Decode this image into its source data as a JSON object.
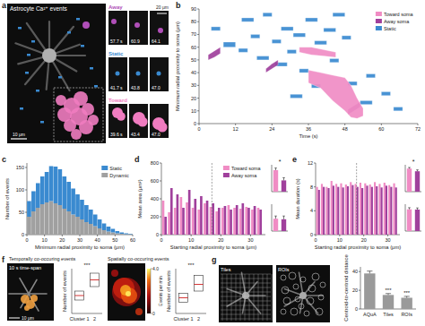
{
  "panel_labels": [
    "a",
    "b",
    "c",
    "d",
    "e",
    "f",
    "g"
  ],
  "images": {
    "a": {
      "title": "Astrocyte Ca²⁺ events",
      "scale_bar": "10 μm",
      "inset_scale_bar": "20 μm",
      "rows": [
        {
          "label": "Away",
          "color": "#b04fb8",
          "times": [
            "57.7 s",
            "60.9",
            "64.1"
          ]
        },
        {
          "label": "Static",
          "color": "#3a8ad0",
          "times": [
            "41.7 s",
            "43.8",
            "47.0"
          ]
        },
        {
          "label": "Toward",
          "color": "#f07cc0",
          "times": [
            "39.6 s",
            "43.4",
            "47.0"
          ]
        }
      ]
    },
    "f": {
      "left_title": "Temporally co-occuring events",
      "left_label": "10 s time-span",
      "scale_bar": "10 μm",
      "right_title": "Spatially co-occuring events",
      "colorbar_title": "Events per min",
      "colorbar_range": [
        0,
        4
      ],
      "colorbar_ticks": [
        0,
        {
          "value": 4,
          "label": "4.0"
        }
      ]
    },
    "g": {
      "labels": [
        "Tiles",
        "ROIs"
      ]
    }
  },
  "chart_data": [
    {
      "type": "range_area",
      "xlabel": "Time (s)",
      "ylabel": "Minimum radial proximity to soma (μm)",
      "xlim": [
        0,
        72
      ],
      "xticks": [
        0,
        12,
        24,
        36,
        48,
        60,
        72
      ],
      "ylim": [
        0,
        90
      ],
      "yticks": [
        0,
        10,
        20,
        30,
        40,
        50,
        60,
        70,
        80,
        90
      ],
      "legend": "upper right",
      "series": [
        {
          "name": "Toward soma",
          "color": "#f08cc4",
          "events": [
            {
              "x": [
                36,
                40,
                44,
                48,
                50,
                52,
                54
              ],
              "low": [
                32,
                28,
                18,
                10,
                5,
                4,
                6
              ],
              "high": [
                42,
                40,
                38,
                36,
                30,
                20,
                12
              ]
            },
            {
              "x": [
                33,
                37,
                41,
                45
              ],
              "low": [
                56,
                54,
                53,
                52
              ],
              "high": [
                60,
                60,
                58,
                56
              ]
            }
          ]
        },
        {
          "name": "Away soma",
          "color": "#a0409c",
          "events": [
            {
              "x": [
                3,
                5,
                7
              ],
              "low": [
                50,
                52,
                55
              ],
              "high": [
                54,
                57,
                60
              ]
            },
            {
              "x": [
                22,
                24,
                26
              ],
              "low": [
                40,
                43,
                46
              ],
              "high": [
                43,
                47,
                50
              ]
            },
            {
              "x": [
                49,
                51,
                53
              ],
              "low": [
                7,
                10,
                13
              ],
              "high": [
                11,
                14,
                17
              ]
            }
          ]
        },
        {
          "name": "Static",
          "color": "#3a8ad0",
          "events": [
            {
              "x": [
                4,
                7
              ],
              "low": [
                73,
                73
              ],
              "high": [
                76,
                76
              ]
            },
            {
              "x": [
                8,
                12
              ],
              "low": [
                60,
                60
              ],
              "high": [
                64,
                64
              ]
            },
            {
              "x": [
                13,
                16
              ],
              "low": [
                56,
                56
              ],
              "high": [
                59,
                59
              ]
            },
            {
              "x": [
                14,
                18
              ],
              "low": [
                80,
                80
              ],
              "high": [
                83,
                83
              ]
            },
            {
              "x": [
                17,
                20
              ],
              "low": [
                67,
                67
              ],
              "high": [
                70,
                70
              ]
            },
            {
              "x": [
                19,
                23
              ],
              "low": [
                50,
                50
              ],
              "high": [
                53,
                53
              ]
            },
            {
              "x": [
                21,
                24
              ],
              "low": [
                84,
                84
              ],
              "high": [
                87,
                87
              ]
            },
            {
              "x": [
                24,
                27
              ],
              "low": [
                63,
                63
              ],
              "high": [
                66,
                66
              ]
            },
            {
              "x": [
                25,
                29
              ],
              "low": [
                45,
                45
              ],
              "high": [
                48,
                48
              ]
            },
            {
              "x": [
                27,
                31
              ],
              "low": [
                73,
                73
              ],
              "high": [
                76,
                76
              ]
            },
            {
              "x": [
                29,
                32
              ],
              "low": [
                55,
                55
              ],
              "high": [
                58,
                58
              ]
            },
            {
              "x": [
                30,
                34
              ],
              "low": [
                20,
                20
              ],
              "high": [
                23,
                23
              ]
            },
            {
              "x": [
                31,
                35
              ],
              "low": [
                68,
                68
              ],
              "high": [
                71,
                71
              ]
            },
            {
              "x": [
                33,
                36
              ],
              "low": [
                40,
                40
              ],
              "high": [
                43,
                43
              ]
            },
            {
              "x": [
                35,
                39
              ],
              "low": [
                80,
                80
              ],
              "high": [
                83,
                83
              ]
            },
            {
              "x": [
                37,
                40
              ],
              "low": [
                28,
                28
              ],
              "high": [
                31,
                31
              ]
            },
            {
              "x": [
                38,
                42
              ],
              "low": [
                62,
                62
              ],
              "high": [
                65,
                65
              ]
            },
            {
              "x": [
                41,
                45
              ],
              "low": [
                72,
                72
              ],
              "high": [
                75,
                75
              ]
            },
            {
              "x": [
                43,
                46
              ],
              "low": [
                48,
                48
              ],
              "high": [
                51,
                51
              ]
            },
            {
              "x": [
                44,
                48
              ],
              "low": [
                84,
                84
              ],
              "high": [
                87,
                87
              ]
            },
            {
              "x": [
                47,
                50
              ],
              "low": [
                66,
                66
              ],
              "high": [
                69,
                69
              ]
            },
            {
              "x": [
                49,
                52
              ],
              "low": [
                30,
                30
              ],
              "high": [
                33,
                33
              ]
            },
            {
              "x": [
                53,
                57
              ],
              "low": [
                15,
                15
              ],
              "high": [
                18,
                18
              ]
            },
            {
              "x": [
                55,
                58
              ],
              "low": [
                36,
                36
              ],
              "high": [
                39,
                39
              ]
            },
            {
              "x": [
                60,
                63
              ],
              "low": [
                22,
                22
              ],
              "high": [
                25,
                25
              ]
            },
            {
              "x": [
                64,
                67
              ],
              "low": [
                10,
                10
              ],
              "high": [
                13,
                13
              ]
            }
          ]
        }
      ]
    },
    {
      "type": "histogram",
      "stacked": true,
      "xlabel": "Minimum radial proximity to soma (μm)",
      "ylabel": "Number of events",
      "bins": [
        0,
        2.5,
        5,
        7.5,
        10,
        12.5,
        15,
        17.5,
        20,
        22.5,
        25,
        27.5,
        30,
        32.5,
        35,
        37.5,
        40,
        42.5,
        45,
        47.5,
        50,
        52.5,
        55,
        57.5,
        60
      ],
      "xlim": [
        0,
        60
      ],
      "xticks": [
        0,
        10,
        20,
        30,
        40,
        50,
        60
      ],
      "ylim": [
        0,
        160
      ],
      "yticks": [
        0,
        50,
        100,
        150
      ],
      "legend": "upper right",
      "series": [
        {
          "name": "Dynamic",
          "color": "#a0a0a0",
          "values": [
            40,
            52,
            60,
            68,
            72,
            75,
            70,
            66,
            58,
            52,
            45,
            40,
            34,
            28,
            24,
            19,
            14,
            10,
            7,
            5,
            3,
            2,
            1,
            1
          ]
        },
        {
          "name": "Static",
          "color": "#3a8ad0",
          "values": [
            35,
            45,
            55,
            62,
            68,
            78,
            82,
            80,
            72,
            66,
            58,
            50,
            44,
            38,
            32,
            26,
            20,
            15,
            11,
            8,
            5,
            3,
            2,
            1
          ]
        }
      ]
    },
    {
      "type": "bar",
      "xlabel": "Starting radial proximity to soma (μm)",
      "ylabel": "Mean area (μm²)",
      "x": [
        1,
        3,
        5,
        7,
        9,
        11,
        13,
        15,
        17,
        19,
        21,
        23,
        25,
        27,
        29,
        31,
        33
      ],
      "xlim": [
        0,
        35
      ],
      "xticks": [
        0,
        10,
        20,
        30
      ],
      "ylim": [
        0,
        800
      ],
      "yticks": [
        0,
        200,
        400,
        600,
        800
      ],
      "reference_line": 17,
      "legend": "upper right",
      "series": [
        {
          "name": "Toward soma",
          "color": "#f08cc4",
          "values": [
            380,
            250,
            300,
            420,
            360,
            300,
            280,
            350,
            310,
            260,
            300,
            330,
            300,
            290,
            310,
            280,
            300
          ]
        },
        {
          "name": "Away soma",
          "color": "#a0409c",
          "values": [
            200,
            520,
            450,
            300,
            500,
            400,
            430,
            380,
            350,
            300,
            320,
            280,
            330,
            350,
            300,
            320,
            280
          ]
        }
      ]
    },
    {
      "type": "bar",
      "values": [
        80,
        42
      ],
      "errors": [
        8,
        10
      ],
      "colors": [
        "#f08cc4",
        "#a0409c"
      ],
      "ylim": [
        0,
        100
      ],
      "tick_labels": false,
      "annotation": "*"
    },
    {
      "type": "bar",
      "values": [
        46,
        44
      ],
      "errors": [
        10,
        12
      ],
      "colors": [
        "#f08cc4",
        "#a0409c"
      ],
      "ylim": [
        0,
        100
      ],
      "tick_labels": false
    },
    {
      "type": "bar",
      "xlabel": "Starting radial proximity to soma (μm)",
      "ylabel": "Mean duration (s)",
      "x": [
        1,
        3,
        5,
        7,
        9,
        11,
        13,
        15,
        17,
        19,
        21,
        23,
        25,
        27,
        29,
        31,
        33
      ],
      "xlim": [
        0,
        35
      ],
      "xticks": [
        0,
        10,
        20,
        30
      ],
      "ylim": [
        0,
        12
      ],
      "yticks": [
        0,
        4,
        8,
        12
      ],
      "reference_line": 17,
      "series": [
        {
          "name": "Toward soma",
          "color": "#f08cc4",
          "values": [
            8,
            8.5,
            8,
            9,
            8.5,
            8.6,
            8.4,
            8.8,
            8.5,
            8.7,
            8.6,
            8.4,
            8.8,
            8.5,
            8.7,
            8.3,
            8.6
          ]
        },
        {
          "name": "Away soma",
          "color": "#a0409c",
          "values": [
            7.5,
            8,
            7.8,
            8.2,
            8,
            7.9,
            8.1,
            8.3,
            8,
            7.8,
            8.2,
            8,
            8.1,
            7.9,
            8.2,
            8,
            7.9
          ]
        }
      ]
    },
    {
      "type": "bar",
      "values": [
        8.6,
        7.6
      ],
      "errors": [
        0.4,
        0.5
      ],
      "colors": [
        "#f08cc4",
        "#a0409c"
      ],
      "ylim": [
        0,
        10
      ],
      "tick_labels": false,
      "annotation": "*"
    },
    {
      "type": "bar",
      "values": [
        8.1,
        8.0
      ],
      "errors": [
        0.6,
        0.6
      ],
      "colors": [
        "#f08cc4",
        "#a0409c"
      ],
      "ylim": [
        0,
        10
      ],
      "tick_labels": false
    },
    {
      "type": "box",
      "ylabel": "Number of events",
      "categories": [
        "Cluster 1",
        "2"
      ],
      "q1": [
        6,
        12
      ],
      "median": [
        8,
        15
      ],
      "q3": [
        10,
        18
      ],
      "ylim": [
        0,
        20
      ],
      "tick_labels": "x",
      "color": "#d02020",
      "annotation": "***"
    },
    {
      "type": "box",
      "ylabel": "Number of events",
      "categories": [
        "Cluster 1",
        "2"
      ],
      "q1": [
        5,
        10
      ],
      "median": [
        7,
        13
      ],
      "q3": [
        9,
        17
      ],
      "ylim": [
        0,
        20
      ],
      "tick_labels": "x",
      "color": "#d02020",
      "annotation": "***"
    },
    {
      "type": "bar",
      "ylabel": "Centroid-to-centroid distance",
      "categories": [
        "AQuA",
        "Tiles",
        "ROIs"
      ],
      "values": [
        38,
        15,
        12
      ],
      "errors": [
        2.5,
        1.5,
        1.5
      ],
      "color": "#9a9a9a",
      "ylim": [
        0,
        45
      ],
      "yticks": [
        0,
        20,
        40
      ],
      "annotations": [
        {
          "category": "Tiles",
          "text": "***"
        },
        {
          "category": "ROIs",
          "text": "***"
        }
      ]
    }
  ]
}
